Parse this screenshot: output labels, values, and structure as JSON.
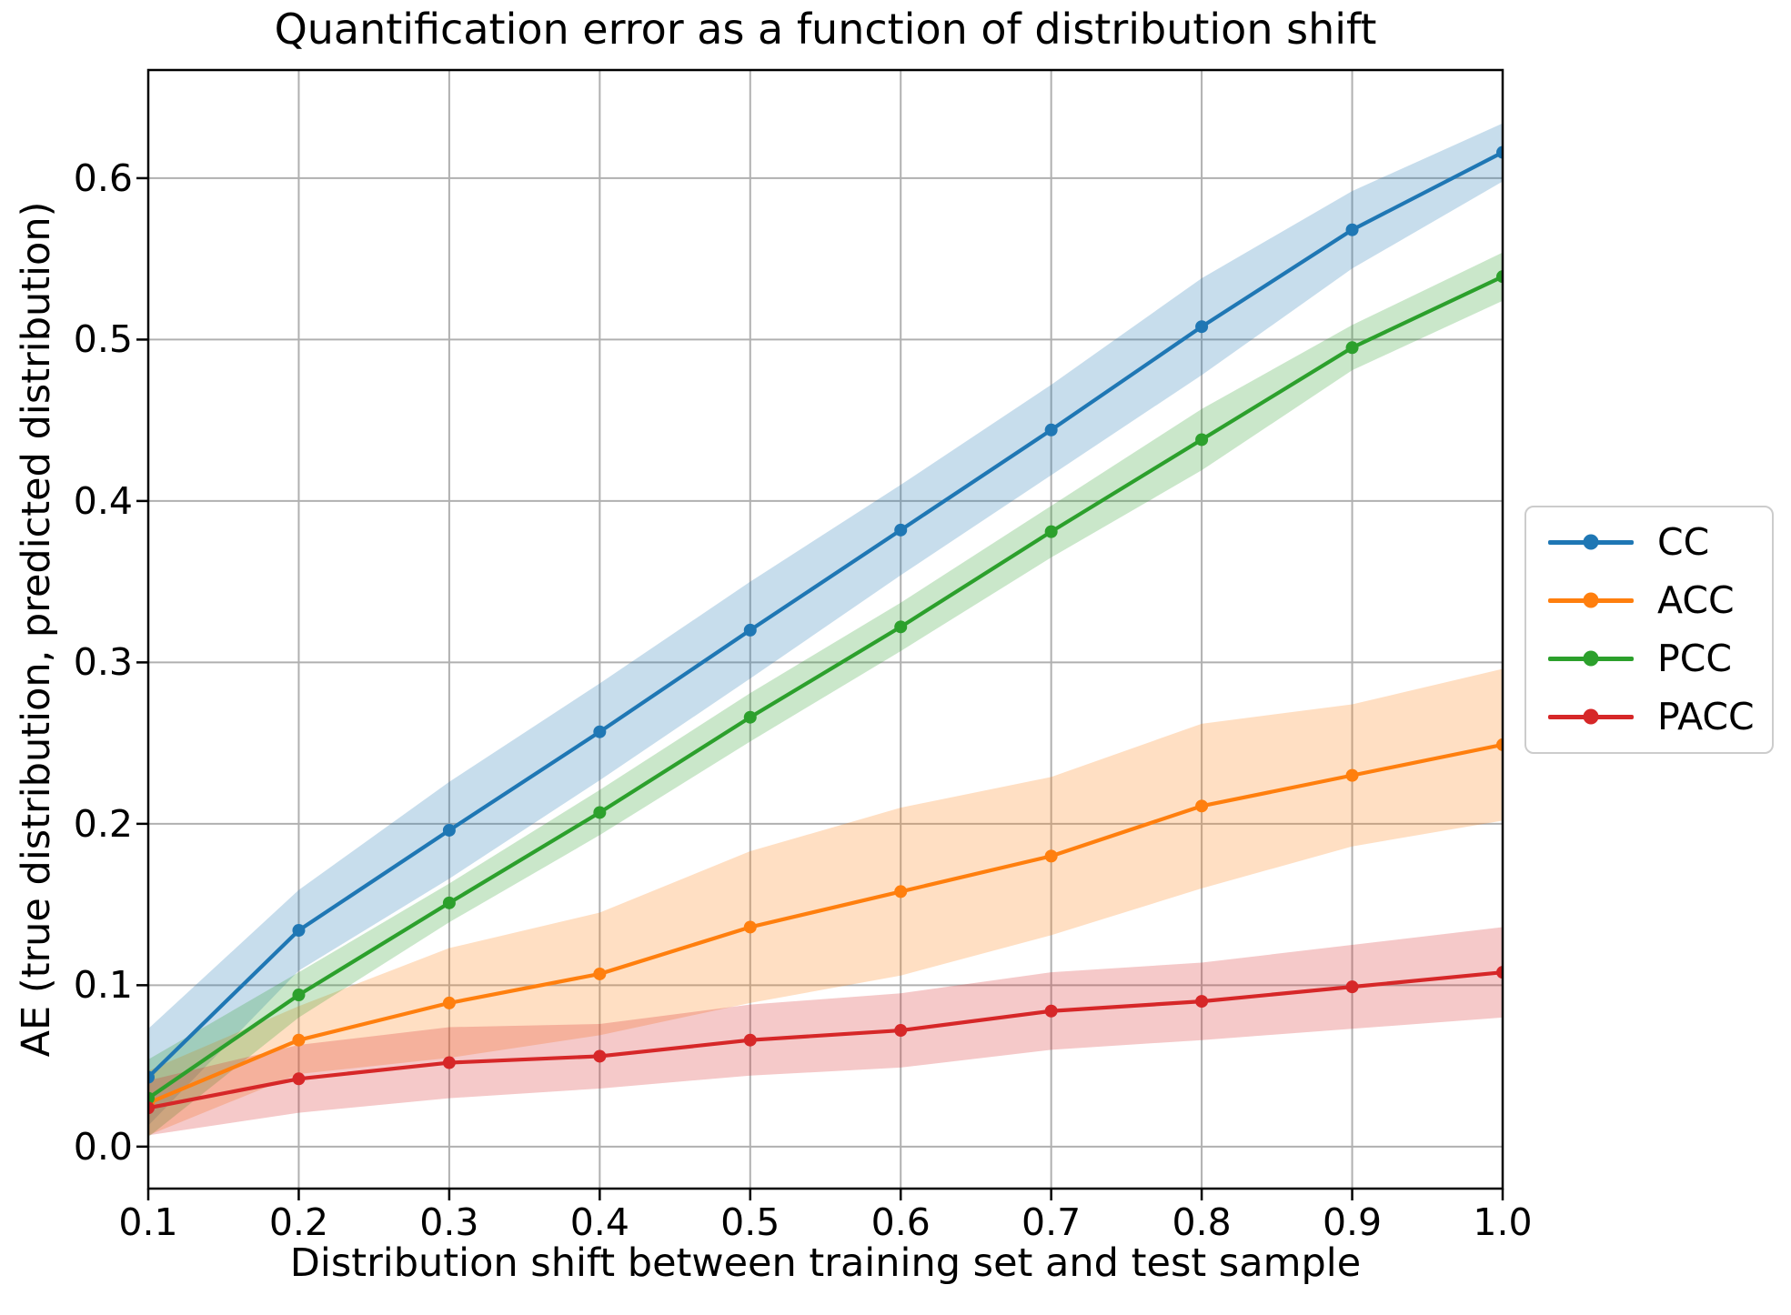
{
  "chart_data": {
    "type": "line",
    "title": "Quantification error as a function of distribution shift",
    "xlabel": "Distribution shift between training set and test sample",
    "ylabel": "AE (true distribution, predicted distribution)",
    "grid": true,
    "legend_position": "right-outside",
    "band_alpha": 0.25,
    "xlim": [
      0.1,
      1.0
    ],
    "ylim": [
      -0.026,
      0.667
    ],
    "x_ticks": {
      "values": [
        0.1,
        0.2,
        0.3,
        0.4,
        0.5,
        0.6,
        0.7,
        0.8,
        0.9,
        1.0
      ],
      "labels": [
        "0.1",
        "0.2",
        "0.3",
        "0.4",
        "0.5",
        "0.6",
        "0.7",
        "0.8",
        "0.9",
        "1.0"
      ]
    },
    "y_ticks": {
      "values": [
        0.0,
        0.1,
        0.2,
        0.3,
        0.4,
        0.5,
        0.6
      ],
      "labels": [
        "0.0",
        "0.1",
        "0.2",
        "0.3",
        "0.4",
        "0.5",
        "0.6"
      ]
    },
    "x": [
      0.1,
      0.2,
      0.3,
      0.4,
      0.5,
      0.6,
      0.7,
      0.8,
      0.9,
      1.0
    ],
    "series": [
      {
        "name": "CC",
        "color": "#1f77b4",
        "values": [
          0.043,
          0.134,
          0.196,
          0.257,
          0.32,
          0.382,
          0.444,
          0.508,
          0.568,
          0.616
        ],
        "band_halfwidth": [
          0.03,
          0.025,
          0.03,
          0.03,
          0.03,
          0.028,
          0.028,
          0.03,
          0.024,
          0.018
        ]
      },
      {
        "name": "ACC",
        "color": "#ff7f0e",
        "values": [
          0.027,
          0.066,
          0.089,
          0.107,
          0.136,
          0.158,
          0.18,
          0.211,
          0.23,
          0.249
        ],
        "band_halfwidth": [
          0.02,
          0.021,
          0.034,
          0.038,
          0.047,
          0.052,
          0.049,
          0.051,
          0.044,
          0.047
        ]
      },
      {
        "name": "PCC",
        "color": "#2ca02c",
        "values": [
          0.03,
          0.094,
          0.151,
          0.207,
          0.266,
          0.322,
          0.381,
          0.438,
          0.495,
          0.539
        ],
        "band_halfwidth": [
          0.024,
          0.014,
          0.012,
          0.014,
          0.015,
          0.015,
          0.016,
          0.019,
          0.014,
          0.015
        ]
      },
      {
        "name": "PACC",
        "color": "#d62728",
        "values": [
          0.024,
          0.042,
          0.052,
          0.056,
          0.066,
          0.072,
          0.084,
          0.09,
          0.099,
          0.108
        ],
        "band_halfwidth": [
          0.017,
          0.021,
          0.022,
          0.02,
          0.022,
          0.023,
          0.024,
          0.024,
          0.026,
          0.028
        ]
      }
    ]
  }
}
